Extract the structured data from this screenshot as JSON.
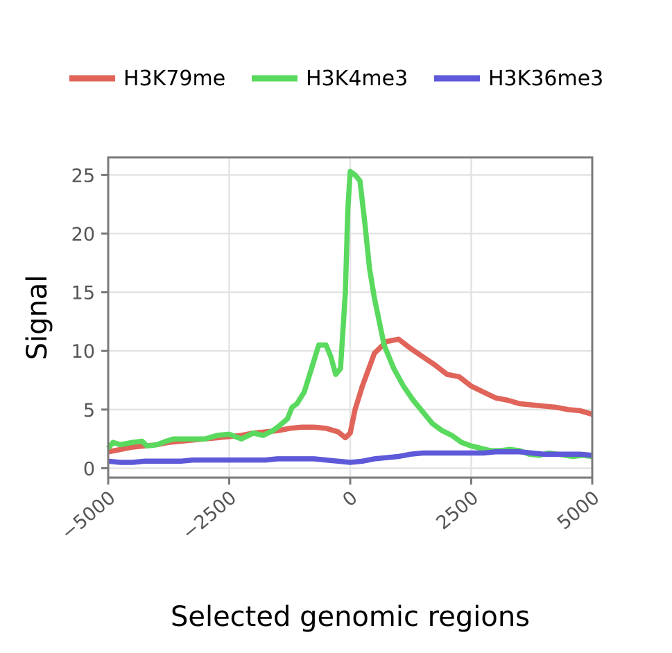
{
  "chart_data": {
    "type": "line",
    "xlabel": "Selected genomic regions",
    "ylabel": "Signal",
    "xlim": [
      -5000,
      5000
    ],
    "ylim": [
      -0.8,
      26.5
    ],
    "x_ticks": [
      -5000,
      -2500,
      0,
      2500,
      5000
    ],
    "x_tick_labels": [
      "−5000",
      "−2500",
      "0",
      "2500",
      "5000"
    ],
    "y_ticks": [
      0,
      5,
      10,
      15,
      20,
      25
    ],
    "y_tick_labels": [
      "0",
      "5",
      "10",
      "15",
      "20",
      "25"
    ],
    "grid": true,
    "legend_position": "top",
    "series": [
      {
        "name": "H3K79me",
        "color": "#E06459",
        "x": [
          -5000,
          -4750,
          -4500,
          -4250,
          -4000,
          -3750,
          -3500,
          -3250,
          -3000,
          -2750,
          -2500,
          -2250,
          -2000,
          -1750,
          -1500,
          -1250,
          -1000,
          -750,
          -500,
          -250,
          -100,
          0,
          100,
          250,
          500,
          750,
          1000,
          1250,
          1500,
          1750,
          2000,
          2250,
          2500,
          2750,
          3000,
          3250,
          3500,
          3750,
          4000,
          4250,
          4500,
          4750,
          5000
        ],
        "y": [
          1.4,
          1.6,
          1.8,
          1.9,
          2.0,
          2.2,
          2.3,
          2.4,
          2.5,
          2.6,
          2.7,
          2.8,
          3.0,
          3.1,
          3.2,
          3.4,
          3.5,
          3.5,
          3.4,
          3.1,
          2.6,
          3.0,
          5.0,
          7.0,
          9.8,
          10.8,
          11.0,
          10.2,
          9.5,
          8.8,
          8.0,
          7.8,
          7.0,
          6.5,
          6.0,
          5.8,
          5.5,
          5.4,
          5.3,
          5.2,
          5.0,
          4.9,
          4.6
        ]
      },
      {
        "name": "H3K4me3",
        "color": "#59D95E",
        "x": [
          -5000,
          -4900,
          -4750,
          -4500,
          -4300,
          -4200,
          -4000,
          -3800,
          -3650,
          -3500,
          -3250,
          -3000,
          -2750,
          -2500,
          -2250,
          -2000,
          -1800,
          -1600,
          -1500,
          -1300,
          -1200,
          -1100,
          -950,
          -800,
          -650,
          -500,
          -400,
          -300,
          -200,
          -100,
          -50,
          0,
          100,
          200,
          300,
          400,
          500,
          600,
          700,
          900,
          1100,
          1300,
          1500,
          1700,
          1900,
          2100,
          2300,
          2500,
          2700,
          2900,
          3100,
          3300,
          3500,
          3700,
          3900,
          4100,
          4300,
          4600,
          4800,
          5000
        ],
        "y": [
          1.7,
          2.2,
          2.0,
          2.2,
          2.3,
          1.9,
          2.0,
          2.3,
          2.5,
          2.5,
          2.5,
          2.5,
          2.8,
          2.9,
          2.5,
          3.0,
          2.8,
          3.2,
          3.5,
          4.2,
          5.2,
          5.5,
          6.5,
          8.5,
          10.5,
          10.5,
          9.5,
          8.0,
          8.5,
          15.0,
          22.0,
          25.3,
          25.0,
          24.5,
          21.0,
          17.0,
          14.5,
          12.5,
          10.5,
          8.5,
          7.0,
          5.8,
          4.8,
          3.8,
          3.2,
          2.8,
          2.2,
          1.9,
          1.7,
          1.5,
          1.5,
          1.6,
          1.5,
          1.2,
          1.1,
          1.3,
          1.2,
          1.0,
          1.1,
          1.0
        ]
      },
      {
        "name": "H3K36me3",
        "color": "#5E59D9",
        "x": [
          -5000,
          -4750,
          -4500,
          -4250,
          -4000,
          -3750,
          -3500,
          -3250,
          -3000,
          -2750,
          -2500,
          -2250,
          -2000,
          -1750,
          -1500,
          -1250,
          -1000,
          -750,
          -500,
          -250,
          0,
          250,
          500,
          750,
          1000,
          1250,
          1500,
          1750,
          2000,
          2250,
          2500,
          2750,
          3000,
          3250,
          3500,
          3750,
          4000,
          4250,
          4500,
          4750,
          5000
        ],
        "y": [
          0.6,
          0.5,
          0.5,
          0.6,
          0.6,
          0.6,
          0.6,
          0.7,
          0.7,
          0.7,
          0.7,
          0.7,
          0.7,
          0.7,
          0.8,
          0.8,
          0.8,
          0.8,
          0.7,
          0.6,
          0.5,
          0.6,
          0.8,
          0.9,
          1.0,
          1.2,
          1.3,
          1.3,
          1.3,
          1.3,
          1.3,
          1.3,
          1.4,
          1.4,
          1.4,
          1.3,
          1.2,
          1.2,
          1.2,
          1.2,
          1.1
        ]
      }
    ]
  }
}
